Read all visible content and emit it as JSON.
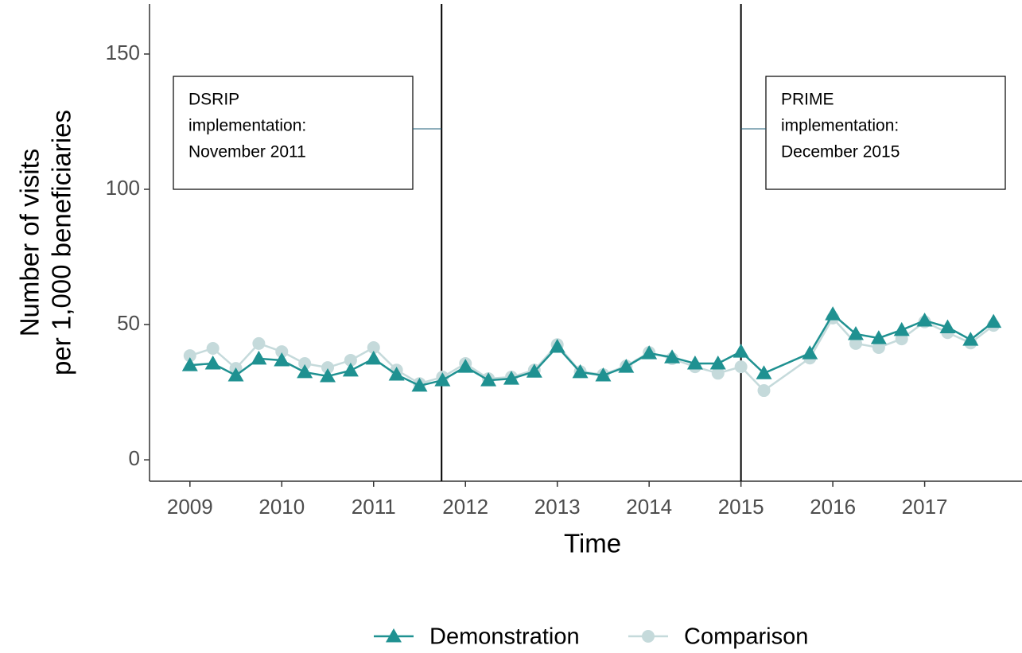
{
  "chart_data": {
    "type": "line",
    "xlabel": "Time",
    "ylabel": [
      "Number of visits",
      "per 1,000 beneficiaries"
    ],
    "xlim": [
      2008.56,
      2018.06
    ],
    "xticks": [
      2009,
      2010,
      2011,
      2012,
      2013,
      2014,
      2015,
      2016,
      2017
    ],
    "ylim": [
      -7.9,
      168.5
    ],
    "yticks": [
      0,
      50,
      100,
      150
    ],
    "grid": false,
    "legend": "bottom",
    "x": [
      2009,
      2009.25,
      2009.5,
      2009.75,
      2010,
      2010.25,
      2010.5,
      2010.75,
      2011,
      2011.25,
      2011.5,
      2011.75,
      2012,
      2012.25,
      2012.5,
      2012.75,
      2013,
      2013.25,
      2013.5,
      2013.75,
      2014,
      2014.25,
      2014.5,
      2014.75,
      2015,
      2015.25,
      2015.75,
      2016,
      2016.25,
      2016.5,
      2016.75,
      2017,
      2017.25,
      2017.5,
      2017.75
    ],
    "series": [
      {
        "name": "Demonstration",
        "color": "#1f9191",
        "marker": "triangle",
        "values": [
          35,
          35.6,
          31.2,
          37.4,
          36.8,
          32.4,
          30.9,
          33,
          37.4,
          31.5,
          27.4,
          29.4,
          34.4,
          29.4,
          30,
          32.6,
          41.8,
          32.4,
          31.2,
          34.4,
          39.4,
          37.9,
          35.6,
          35.6,
          40,
          32,
          39.4,
          53.8,
          46.5,
          45,
          48,
          51.5,
          49,
          44.4,
          51
        ]
      },
      {
        "name": "Comparison",
        "color": "#c5dadb",
        "marker": "circle",
        "values": [
          38.5,
          41.2,
          33.8,
          43,
          40,
          35.6,
          34.1,
          36.8,
          41.5,
          33.2,
          28.2,
          30.6,
          35.6,
          30,
          30.6,
          33.2,
          42.6,
          32.6,
          31.5,
          34.7,
          39.7,
          37.4,
          34.4,
          32,
          34.4,
          25.6,
          37.6,
          52.4,
          43,
          41.5,
          44.7,
          51,
          47,
          43.2,
          49.7
        ]
      }
    ],
    "annotations": [
      {
        "x": 2011.74,
        "text": [
          "DSRIP",
          "implementation:",
          "November 2011"
        ]
      },
      {
        "x": 2015.0,
        "text": [
          "PRIME",
          "implementation:",
          "December 2015"
        ]
      }
    ]
  }
}
